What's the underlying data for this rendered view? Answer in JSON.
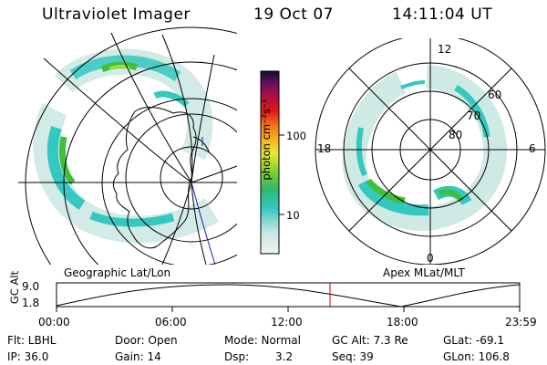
{
  "header": {
    "title": "Ultraviolet Imager",
    "date": "19 Oct 07",
    "time": "14:11:04 UT"
  },
  "colorbar": {
    "label": "photon cm⁻²s⁻¹",
    "ticks": [
      "100",
      "10"
    ]
  },
  "left_panel": {
    "caption": "Geographic Lat/Lon"
  },
  "right_panel": {
    "caption": "Apex MLat/MLT",
    "mlt_labels": {
      "top": "12",
      "right": "6",
      "bottom": "0",
      "left": "18"
    },
    "mlat_labels": [
      "60",
      "70",
      "80"
    ]
  },
  "timeline": {
    "ylabel": "GC Alt",
    "y_ticks": [
      "9.0",
      "1.8"
    ],
    "x_ticks": [
      "00:00",
      "06:00",
      "12:00",
      "18:00",
      "23:59"
    ],
    "current_time": "14:11:04"
  },
  "info": {
    "flt": "Flt: LBHL",
    "door": "Door: Open",
    "mode": "Mode: Normal",
    "gcalt": "GC Alt: 7.3 Re",
    "glat": "GLat: -69.1",
    "ip": "IP: 36.0",
    "gain": "Gain: 14",
    "dsp_label": "Dsp:",
    "dsp_value": "3.2",
    "seq": "Seq: 39",
    "glon": "GLon: 106.8"
  },
  "colors": {
    "aurora_low": "#c7e6e0",
    "aurora_mid": "#33c8c0",
    "aurora_high": "#3fbf3a",
    "aurora_peak": "#a6e02a",
    "marker": "#cc0000",
    "track": "#1020c0"
  }
}
